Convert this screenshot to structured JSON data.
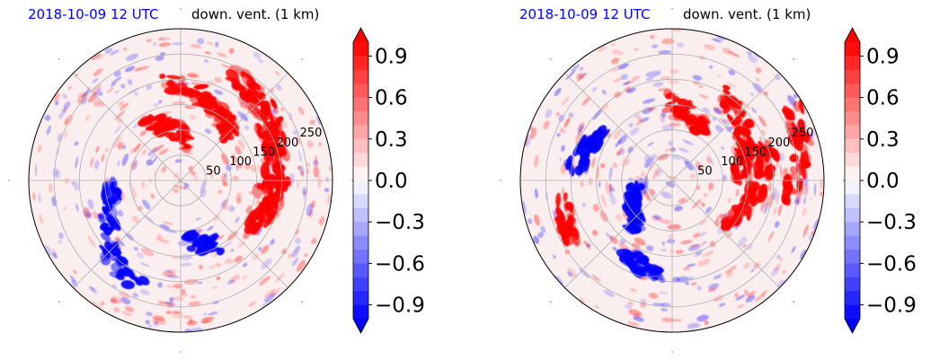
{
  "panels": [
    {
      "title_left": "2018-10-09 12 UTC",
      "title_right": "down. vent. (1 km)"
    },
    {
      "title_left": "2018-10-09 12 UTC",
      "title_right": "down. vent. (1 km)"
    }
  ],
  "colors": {
    "positive": "#ff0000",
    "negative": "#0000ff",
    "neutral": "#ffffff",
    "grid": "#b0b0b0"
  },
  "chart_data": [
    {
      "type": "heatmap",
      "projection": "polar",
      "title": "2018-10-09 12 UTC    down. vent. (1 km)",
      "radial_ticks": [
        "50",
        "100",
        "150",
        "200",
        "250"
      ],
      "radial_tick_values": [
        50,
        100,
        150,
        200,
        250
      ],
      "colorbar": {
        "ticks": [
          "0.9",
          "0.6",
          "0.3",
          "0.0",
          "−0.3",
          "−0.6",
          "−0.9"
        ],
        "range": [
          -1.0,
          1.0
        ],
        "extend": "both",
        "colormap": "bwr"
      },
      "grid": true,
      "features": [
        {
          "kind": "pos",
          "angle": 70,
          "r": 0.55,
          "size": 1.0
        },
        {
          "kind": "pos",
          "angle": 40,
          "r": 0.7,
          "size": 0.8
        },
        {
          "kind": "pos",
          "angle": 15,
          "r": 0.65,
          "size": 0.9
        },
        {
          "kind": "pos",
          "angle": 100,
          "r": 0.35,
          "size": 0.7
        },
        {
          "kind": "pos",
          "angle": -20,
          "r": 0.6,
          "size": 0.7
        },
        {
          "kind": "neg",
          "angle": 200,
          "r": 0.5,
          "size": 0.6
        },
        {
          "kind": "neg",
          "angle": 235,
          "r": 0.7,
          "size": 0.5
        },
        {
          "kind": "neg",
          "angle": 290,
          "r": 0.45,
          "size": 0.4
        }
      ]
    },
    {
      "type": "heatmap",
      "projection": "polar",
      "title": "2018-10-09 12 UTC    down. vent. (1 km)",
      "radial_ticks": [
        "50",
        "100",
        "150",
        "200",
        "250"
      ],
      "radial_tick_values": [
        50,
        100,
        150,
        200,
        250
      ],
      "colorbar": {
        "ticks": [
          "0.9",
          "0.6",
          "0.3",
          "0.0",
          "−0.3",
          "−0.6",
          "−0.9"
        ],
        "range": [
          -1.0,
          1.0
        ],
        "extend": "both",
        "colormap": "bwr"
      },
      "grid": true,
      "features": [
        {
          "kind": "pos",
          "angle": 30,
          "r": 0.55,
          "size": 1.0
        },
        {
          "kind": "pos",
          "angle": -10,
          "r": 0.55,
          "size": 1.0
        },
        {
          "kind": "pos",
          "angle": 75,
          "r": 0.45,
          "size": 0.6
        },
        {
          "kind": "pos",
          "angle": 10,
          "r": 0.85,
          "size": 0.7
        },
        {
          "kind": "pos",
          "angle": 200,
          "r": 0.75,
          "size": 0.4
        },
        {
          "kind": "neg",
          "angle": 210,
          "r": 0.3,
          "size": 0.8
        },
        {
          "kind": "neg",
          "angle": 160,
          "r": 0.6,
          "size": 0.5
        },
        {
          "kind": "neg",
          "angle": 250,
          "r": 0.6,
          "size": 0.5
        }
      ]
    }
  ]
}
